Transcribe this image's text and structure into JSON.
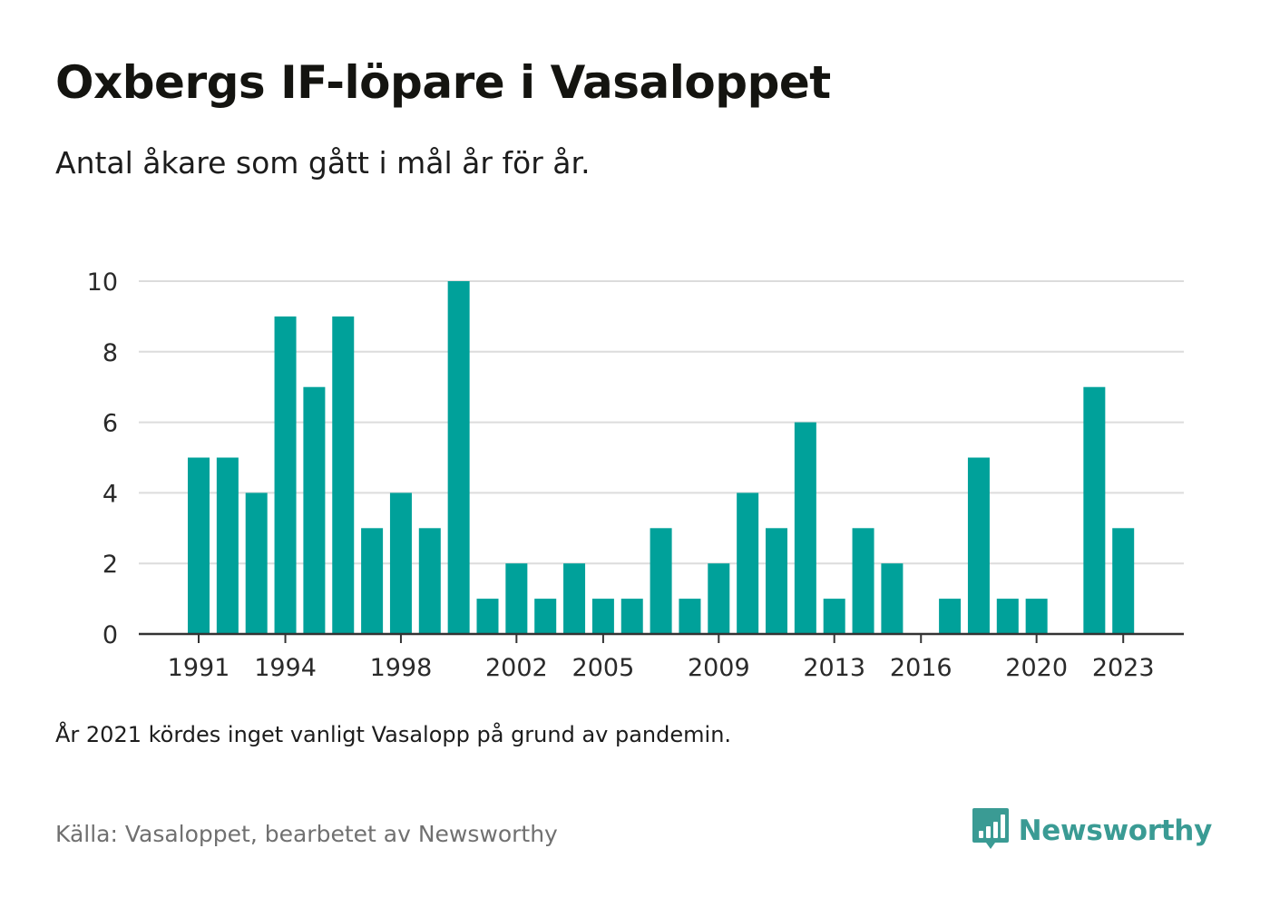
{
  "header": {
    "title": "Oxbergs IF-löpare i Vasaloppet",
    "subtitle": "Antal åkare som gått i mål år för år."
  },
  "footer": {
    "note": "År 2021 kördes inget vanligt Vasalopp på grund av pandemin.",
    "source": "Källa: Vasaloppet, bearbetet av Newsworthy",
    "brand": "Newsworthy",
    "brand_icon": "bar-chart-speech-bubble-icon",
    "brand_color": "#3a9b94"
  },
  "chart_data": {
    "type": "bar",
    "title": "",
    "xlabel": "",
    "ylabel": "",
    "bar_color": "#00a19a",
    "grid": true,
    "ylim": [
      0,
      10
    ],
    "yticks": [
      0,
      2,
      4,
      6,
      8,
      10
    ],
    "xticks": [
      1991,
      1994,
      1998,
      2002,
      2005,
      2009,
      2013,
      2016,
      2020,
      2023
    ],
    "categories": [
      1991,
      1992,
      1993,
      1994,
      1995,
      1996,
      1997,
      1998,
      1999,
      2000,
      2001,
      2002,
      2003,
      2004,
      2005,
      2006,
      2007,
      2008,
      2009,
      2010,
      2011,
      2012,
      2013,
      2014,
      2015,
      2016,
      2017,
      2018,
      2019,
      2020,
      2021,
      2022,
      2023
    ],
    "values": [
      5,
      5,
      4,
      9,
      7,
      9,
      3,
      4,
      3,
      10,
      1,
      2,
      1,
      2,
      1,
      1,
      3,
      1,
      2,
      4,
      3,
      6,
      1,
      3,
      2,
      0,
      1,
      5,
      1,
      1,
      null,
      7,
      3
    ]
  }
}
